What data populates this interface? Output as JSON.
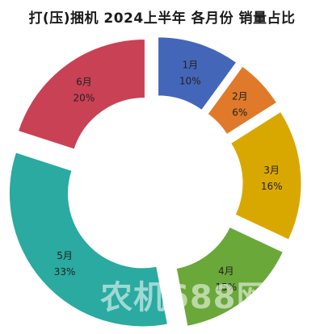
{
  "title": "打(压)捆机  2024上半年  各月份  销量占比",
  "watermark": "农机688网",
  "chart_data": {
    "type": "pie",
    "variant": "donut-exploded",
    "title": "打(压)捆机  2024上半年  各月份  销量占比",
    "categories": [
      "1月",
      "2月",
      "3月",
      "4月",
      "5月",
      "6月"
    ],
    "values": [
      10,
      6,
      16,
      15,
      33,
      20
    ],
    "value_labels": [
      "10%",
      "6%",
      "16%",
      "15%",
      "33%",
      "20%"
    ],
    "colors": [
      "#4466b8",
      "#e07a2a",
      "#d9a800",
      "#6aa83a",
      "#2aaaa0",
      "#c94155"
    ],
    "legend": "none"
  }
}
